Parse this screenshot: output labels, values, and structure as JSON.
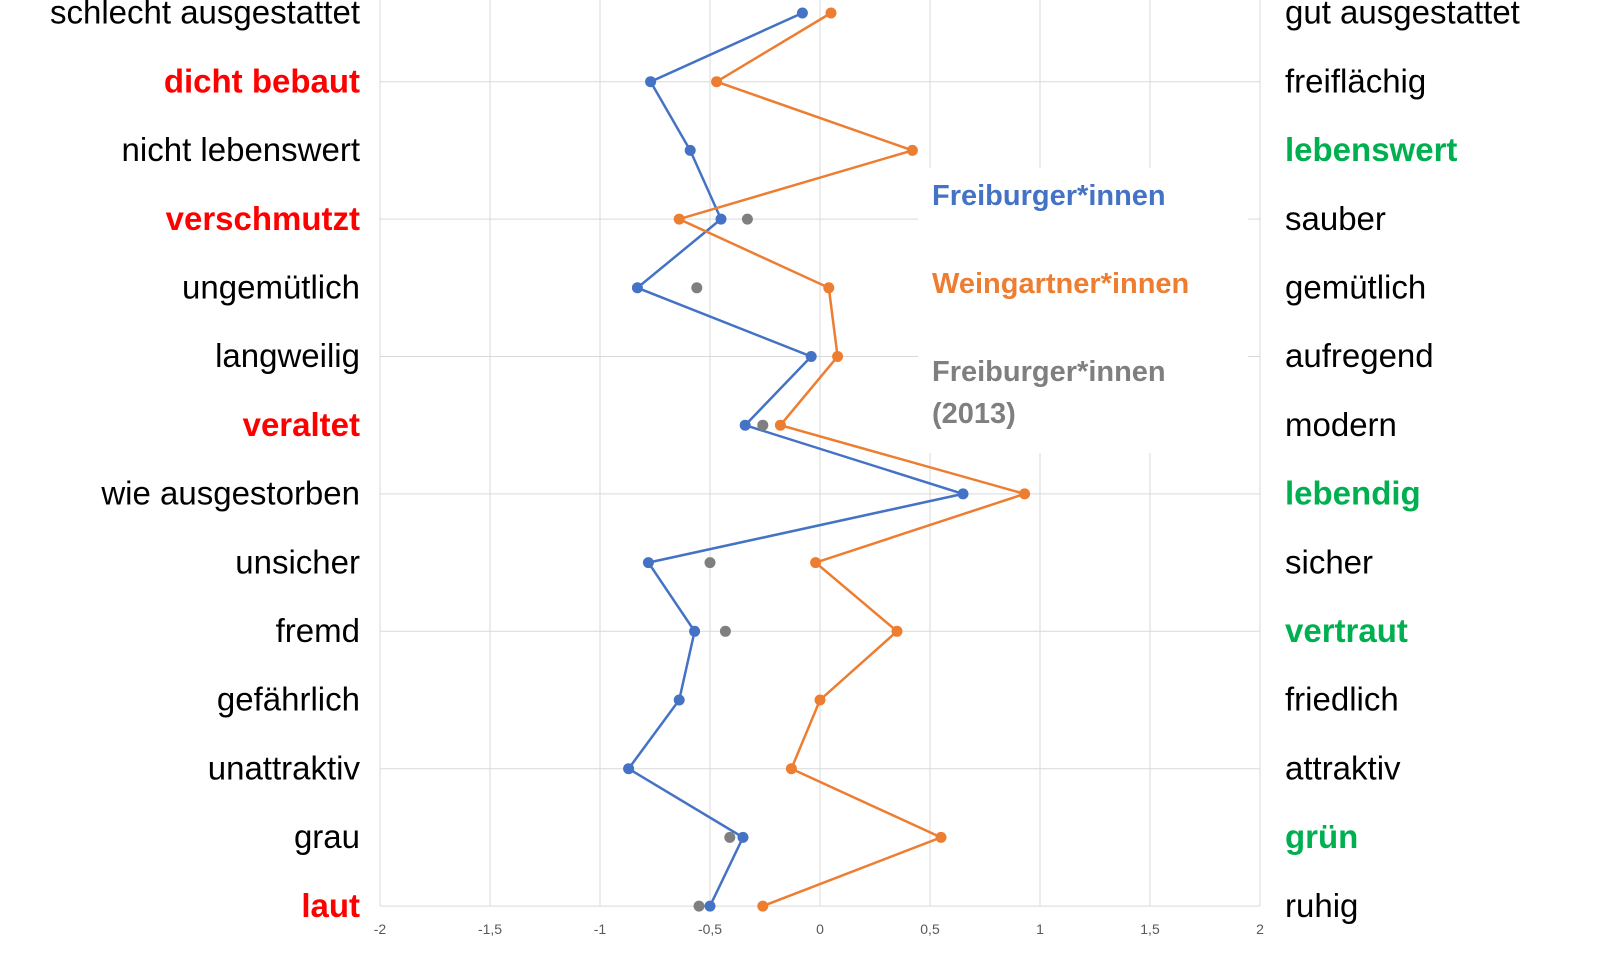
{
  "chart_data": {
    "type": "line",
    "categories": [
      "schlecht ausgestattet",
      "dicht bebaut",
      "nicht lebenswert",
      "verschmutzt",
      "ungemütlich",
      "langweilig",
      "veraltet",
      "wie ausgestorben",
      "unsicher",
      "fremd",
      "gefährlich",
      "unattraktiv",
      "grau",
      "laut"
    ],
    "category_colors": [
      "#000000",
      "#ff0000",
      "#000000",
      "#ff0000",
      "#000000",
      "#000000",
      "#ff0000",
      "#000000",
      "#000000",
      "#000000",
      "#000000",
      "#000000",
      "#000000",
      "#ff0000"
    ],
    "right_categories": [
      "gut ausgestattet",
      "freiflächig",
      "lebenswert",
      "sauber",
      "gemütlich",
      "aufregend",
      "modern",
      "lebendig",
      "sicher",
      "vertraut",
      "friedlich",
      "attraktiv",
      "grün",
      "ruhig"
    ],
    "right_category_colors": [
      "#000000",
      "#000000",
      "#00b050",
      "#000000",
      "#000000",
      "#000000",
      "#000000",
      "#00b050",
      "#000000",
      "#00b050",
      "#000000",
      "#000000",
      "#00b050",
      "#000000"
    ],
    "series": [
      {
        "name": "Freiburger*innen",
        "color": "#4472c4",
        "values": [
          -0.08,
          -0.77,
          -0.59,
          -0.45,
          -0.83,
          -0.04,
          -0.34,
          0.65,
          -0.78,
          -0.57,
          -0.64,
          -0.87,
          -0.35,
          -0.5
        ]
      },
      {
        "name": "Weingartner*innen",
        "color": "#ed7d31",
        "values": [
          0.05,
          -0.47,
          0.42,
          -0.64,
          0.04,
          0.08,
          -0.18,
          0.93,
          -0.02,
          0.35,
          0,
          -0.13,
          0.55,
          -0.26
        ]
      },
      {
        "name": "Freiburger*innen (2013)",
        "color": "#7f7f7f",
        "line": false,
        "values": [
          null,
          null,
          null,
          -0.33,
          -0.56,
          null,
          -0.26,
          null,
          -0.5,
          -0.43,
          null,
          null,
          -0.41,
          -0.55
        ]
      }
    ],
    "xlim": [
      -2,
      2
    ],
    "xticks": [
      {
        "value": -2,
        "label": "-2"
      },
      {
        "value": -1.5,
        "label": "-1,5"
      },
      {
        "value": -1,
        "label": "-1"
      },
      {
        "value": -0.5,
        "label": "-0,5"
      },
      0,
      {
        "value": 0.5,
        "label": "0,5"
      },
      1,
      {
        "value": 1.5,
        "label": "1,5"
      },
      2
    ],
    "grid": true
  }
}
